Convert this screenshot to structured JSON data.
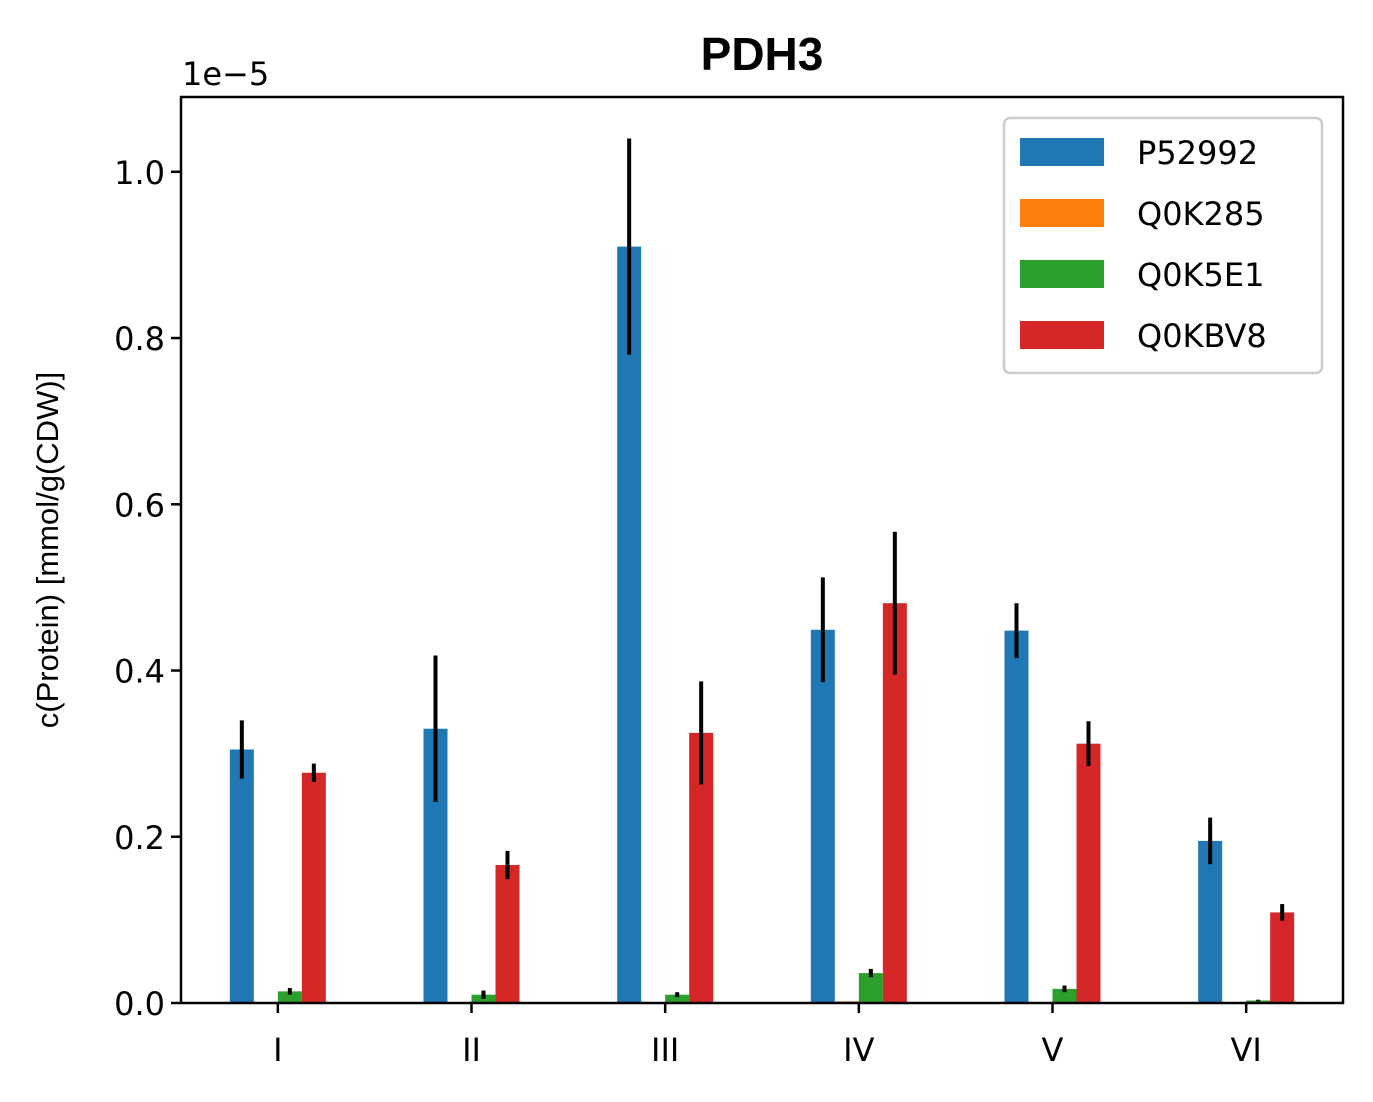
{
  "chart_data": {
    "type": "bar",
    "title": "PDH3",
    "ylabel": "c(Protein) [mmol/g(CDW)]",
    "xlabel": "",
    "y_offset_label": "1e−5",
    "y_scale": 1e-05,
    "ylim": [
      0,
      1.09
    ],
    "yticks": [
      0.0,
      0.2,
      0.4,
      0.6,
      0.8,
      1.0
    ],
    "ytick_labels": [
      "0.0",
      "0.2",
      "0.4",
      "0.6",
      "0.8",
      "1.0"
    ],
    "categories": [
      "I",
      "II",
      "III",
      "IV",
      "V",
      "VI"
    ],
    "legend_position": "top-right",
    "grid": false,
    "series": [
      {
        "name": "P52992",
        "color": "#1f77b4",
        "values": [
          0.305,
          0.33,
          0.91,
          0.449,
          0.448,
          0.195
        ],
        "errors": [
          0.035,
          0.088,
          0.13,
          0.063,
          0.033,
          0.028
        ]
      },
      {
        "name": "Q0K285",
        "color": "#ff7f0e",
        "values": [
          0.0,
          0.001,
          0.0,
          0.002,
          0.0,
          0.0
        ],
        "errors": [
          0.0,
          0.0,
          0.0,
          0.0,
          0.0,
          0.0
        ]
      },
      {
        "name": "Q0K5E1",
        "color": "#2ca02c",
        "values": [
          0.014,
          0.01,
          0.01,
          0.036,
          0.017,
          0.003
        ],
        "errors": [
          0.004,
          0.005,
          0.003,
          0.005,
          0.004,
          0.001
        ]
      },
      {
        "name": "Q0KBV8",
        "color": "#d62728",
        "values": [
          0.277,
          0.166,
          0.325,
          0.481,
          0.312,
          0.109
        ],
        "errors": [
          0.011,
          0.017,
          0.062,
          0.086,
          0.027,
          0.01
        ]
      }
    ]
  }
}
